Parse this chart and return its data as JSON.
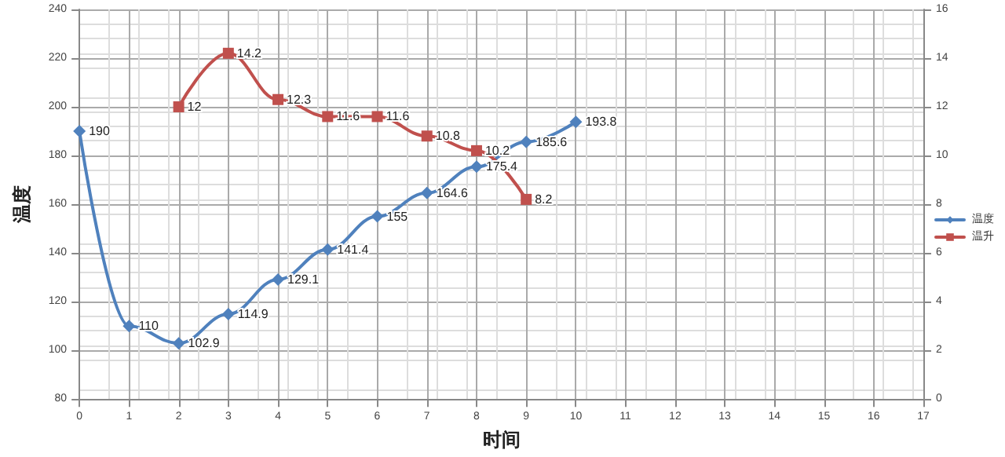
{
  "chart_data": {
    "type": "line",
    "xlabel": "时间",
    "ylabel": "温度",
    "series": [
      {
        "name": "温度",
        "color": "#4f81bd",
        "marker": "diamond",
        "x": [
          0,
          1,
          2,
          3,
          4,
          5,
          6,
          7,
          8,
          9,
          10
        ],
        "values": [
          190,
          110,
          102.9,
          114.9,
          129.1,
          141.4,
          155,
          164.6,
          175.4,
          185.6,
          193.8
        ]
      },
      {
        "name": "温升",
        "color": "#c0504d",
        "marker": "square",
        "axis": "y2",
        "x": [
          2,
          3,
          4,
          5,
          6,
          7,
          8,
          9
        ],
        "values": [
          12,
          14.2,
          12.3,
          11.6,
          11.6,
          10.8,
          10.2,
          8.2
        ]
      }
    ],
    "xlim": [
      0,
      17
    ],
    "xticks": [
      0,
      1,
      2,
      3,
      4,
      5,
      6,
      7,
      8,
      9,
      10,
      11,
      12,
      13,
      14,
      15,
      16,
      17
    ],
    "ylim": [
      80,
      240
    ],
    "yticks": [
      80,
      100,
      120,
      140,
      160,
      180,
      200,
      220,
      240
    ],
    "y2lim": [
      0,
      16
    ],
    "y2ticks": [
      0,
      2,
      4,
      6,
      8,
      10,
      12,
      14,
      16
    ],
    "grid": true,
    "legend": "right",
    "data_labels": true,
    "line_style": "solid"
  }
}
